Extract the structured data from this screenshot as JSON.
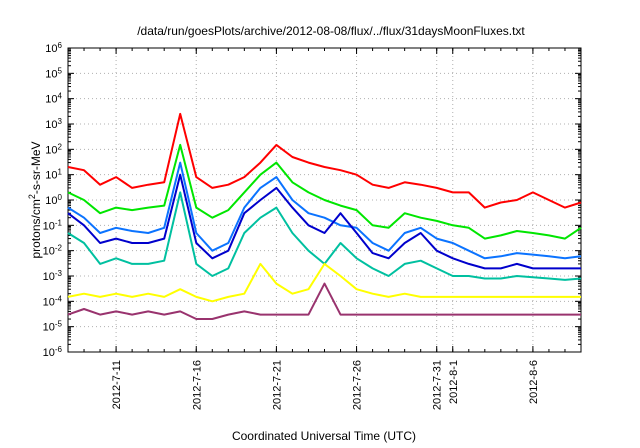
{
  "chart_data": {
    "type": "line",
    "title": "/data/run/goesPlots/archive/2012-08-08/flux/../flux/31daysMoonFluxes.txt",
    "xlabel": "Coordinated Universal Time (UTC)",
    "ylabel": "protons/cm2-s-sr-MeV",
    "ylabel_parts": {
      "base": "protons/cm",
      "sup": "2",
      "rest": "-s-sr-MeV"
    },
    "yscale": "log",
    "ylim": [
      1e-06,
      1000000.0
    ],
    "xlim": [
      "2012-07-08",
      "2012-08-09"
    ],
    "y_ticks": [
      {
        "value": 1e-06,
        "base": "10",
        "exp": "-6"
      },
      {
        "value": 1e-05,
        "base": "10",
        "exp": "-5"
      },
      {
        "value": 0.0001,
        "base": "10",
        "exp": "-4"
      },
      {
        "value": 0.001,
        "base": "10",
        "exp": "-3"
      },
      {
        "value": 0.01,
        "base": "10",
        "exp": "-2"
      },
      {
        "value": 0.1,
        "base": "10",
        "exp": "-1"
      },
      {
        "value": 1,
        "base": "10",
        "exp": "0"
      },
      {
        "value": 10,
        "base": "10",
        "exp": "1"
      },
      {
        "value": 100,
        "base": "10",
        "exp": "2"
      },
      {
        "value": 1000,
        "base": "10",
        "exp": "3"
      },
      {
        "value": 10000,
        "base": "10",
        "exp": "4"
      },
      {
        "value": 100000,
        "base": "10",
        "exp": "5"
      },
      {
        "value": 1000000,
        "base": "10",
        "exp": "6"
      }
    ],
    "x_ticks": [
      {
        "date": "2012-07-11",
        "label": "2012-7-11"
      },
      {
        "date": "2012-07-16",
        "label": "2012-7-16"
      },
      {
        "date": "2012-07-21",
        "label": "2012-7-21"
      },
      {
        "date": "2012-07-26",
        "label": "2012-7-26"
      },
      {
        "date": "2012-07-31",
        "label": "2012-7-31"
      },
      {
        "date": "2012-08-01",
        "label": "2012-8-1"
      },
      {
        "date": "2012-08-06",
        "label": "2012-8-6"
      }
    ],
    "grid": true,
    "legend": "none",
    "series": [
      {
        "color": "#ff0000",
        "x": [
          "2012-07-08",
          "2012-07-09",
          "2012-07-10",
          "2012-07-11",
          "2012-07-12",
          "2012-07-13",
          "2012-07-14",
          "2012-07-15",
          "2012-07-16",
          "2012-07-17",
          "2012-07-18",
          "2012-07-19",
          "2012-07-20",
          "2012-07-21",
          "2012-07-22",
          "2012-07-23",
          "2012-07-24",
          "2012-07-25",
          "2012-07-26",
          "2012-07-27",
          "2012-07-28",
          "2012-07-29",
          "2012-07-30",
          "2012-07-31",
          "2012-08-01",
          "2012-08-02",
          "2012-08-03",
          "2012-08-04",
          "2012-08-05",
          "2012-08-06",
          "2012-08-07",
          "2012-08-08",
          "2012-08-09"
        ],
        "values": [
          20,
          15,
          4,
          8,
          3,
          4,
          5,
          2500,
          8,
          3,
          4,
          8,
          30,
          150,
          50,
          30,
          20,
          15,
          10,
          4,
          3,
          5,
          4,
          3,
          2,
          2,
          0.5,
          0.8,
          1,
          2,
          1,
          0.5,
          0.8
        ]
      },
      {
        "color": "#00e600",
        "x": [
          "2012-07-08",
          "2012-07-09",
          "2012-07-10",
          "2012-07-11",
          "2012-07-12",
          "2012-07-13",
          "2012-07-14",
          "2012-07-15",
          "2012-07-16",
          "2012-07-17",
          "2012-07-18",
          "2012-07-19",
          "2012-07-20",
          "2012-07-21",
          "2012-07-22",
          "2012-07-23",
          "2012-07-24",
          "2012-07-25",
          "2012-07-26",
          "2012-07-27",
          "2012-07-28",
          "2012-07-29",
          "2012-07-30",
          "2012-07-31",
          "2012-08-01",
          "2012-08-02",
          "2012-08-03",
          "2012-08-04",
          "2012-08-05",
          "2012-08-06",
          "2012-08-07",
          "2012-08-08",
          "2012-08-09"
        ],
        "values": [
          2,
          1,
          0.3,
          0.5,
          0.4,
          0.5,
          0.6,
          150,
          0.5,
          0.2,
          0.4,
          2,
          10,
          30,
          5,
          2,
          1,
          0.6,
          0.4,
          0.1,
          0.08,
          0.3,
          0.2,
          0.15,
          0.1,
          0.08,
          0.03,
          0.04,
          0.06,
          0.05,
          0.04,
          0.03,
          0.08
        ]
      },
      {
        "color": "#0b73ff",
        "x": [
          "2012-07-08",
          "2012-07-09",
          "2012-07-10",
          "2012-07-11",
          "2012-07-12",
          "2012-07-13",
          "2012-07-14",
          "2012-07-15",
          "2012-07-16",
          "2012-07-17",
          "2012-07-18",
          "2012-07-19",
          "2012-07-20",
          "2012-07-21",
          "2012-07-22",
          "2012-07-23",
          "2012-07-24",
          "2012-07-25",
          "2012-07-26",
          "2012-07-27",
          "2012-07-28",
          "2012-07-29",
          "2012-07-30",
          "2012-07-31",
          "2012-08-01",
          "2012-08-02",
          "2012-08-03",
          "2012-08-04",
          "2012-08-05",
          "2012-08-06",
          "2012-08-07",
          "2012-08-08",
          "2012-08-09"
        ],
        "values": [
          0.5,
          0.2,
          0.05,
          0.08,
          0.06,
          0.05,
          0.08,
          30,
          0.05,
          0.01,
          0.02,
          0.5,
          3,
          8,
          1,
          0.3,
          0.2,
          0.1,
          0.08,
          0.02,
          0.01,
          0.05,
          0.08,
          0.03,
          0.02,
          0.01,
          0.005,
          0.006,
          0.008,
          0.007,
          0.006,
          0.005,
          0.006
        ]
      },
      {
        "color": "#0000cc",
        "x": [
          "2012-07-08",
          "2012-07-09",
          "2012-07-10",
          "2012-07-11",
          "2012-07-12",
          "2012-07-13",
          "2012-07-14",
          "2012-07-15",
          "2012-07-16",
          "2012-07-17",
          "2012-07-18",
          "2012-07-19",
          "2012-07-20",
          "2012-07-21",
          "2012-07-22",
          "2012-07-23",
          "2012-07-24",
          "2012-07-25",
          "2012-07-26",
          "2012-07-27",
          "2012-07-28",
          "2012-07-29",
          "2012-07-30",
          "2012-07-31",
          "2012-08-01",
          "2012-08-02",
          "2012-08-03",
          "2012-08-04",
          "2012-08-05",
          "2012-08-06",
          "2012-08-07",
          "2012-08-08",
          "2012-08-09"
        ],
        "values": [
          0.3,
          0.1,
          0.02,
          0.03,
          0.02,
          0.02,
          0.03,
          10,
          0.02,
          0.005,
          0.01,
          0.3,
          1,
          3,
          0.5,
          0.1,
          0.05,
          0.3,
          0.05,
          0.008,
          0.005,
          0.02,
          0.05,
          0.01,
          0.005,
          0.003,
          0.002,
          0.002,
          0.003,
          0.002,
          0.002,
          0.002,
          0.002
        ]
      },
      {
        "color": "#00c0a0",
        "x": [
          "2012-07-08",
          "2012-07-09",
          "2012-07-10",
          "2012-07-11",
          "2012-07-12",
          "2012-07-13",
          "2012-07-14",
          "2012-07-15",
          "2012-07-16",
          "2012-07-17",
          "2012-07-18",
          "2012-07-19",
          "2012-07-20",
          "2012-07-21",
          "2012-07-22",
          "2012-07-23",
          "2012-07-24",
          "2012-07-25",
          "2012-07-26",
          "2012-07-27",
          "2012-07-28",
          "2012-07-29",
          "2012-07-30",
          "2012-07-31",
          "2012-08-01",
          "2012-08-02",
          "2012-08-03",
          "2012-08-04",
          "2012-08-05",
          "2012-08-06",
          "2012-08-07",
          "2012-08-08",
          "2012-08-09"
        ],
        "values": [
          0.05,
          0.02,
          0.003,
          0.005,
          0.003,
          0.003,
          0.004,
          2,
          0.003,
          0.001,
          0.002,
          0.05,
          0.2,
          0.5,
          0.05,
          0.01,
          0.003,
          0.02,
          0.005,
          0.002,
          0.001,
          0.003,
          0.004,
          0.002,
          0.001,
          0.001,
          0.0008,
          0.0008,
          0.001,
          0.0009,
          0.0008,
          0.0007,
          0.0008
        ]
      },
      {
        "color": "#ffff00",
        "x": [
          "2012-07-08",
          "2012-07-09",
          "2012-07-10",
          "2012-07-11",
          "2012-07-12",
          "2012-07-13",
          "2012-07-14",
          "2012-07-15",
          "2012-07-16",
          "2012-07-17",
          "2012-07-18",
          "2012-07-19",
          "2012-07-20",
          "2012-07-21",
          "2012-07-22",
          "2012-07-23",
          "2012-07-24",
          "2012-07-25",
          "2012-07-26",
          "2012-07-27",
          "2012-07-28",
          "2012-07-29",
          "2012-07-30",
          "2012-07-31",
          "2012-08-01",
          "2012-08-02",
          "2012-08-03",
          "2012-08-04",
          "2012-08-05",
          "2012-08-06",
          "2012-08-07",
          "2012-08-08",
          "2012-08-09"
        ],
        "values": [
          0.00015,
          0.0002,
          0.00015,
          0.0002,
          0.00015,
          0.0002,
          0.00015,
          0.0003,
          0.00015,
          0.0001,
          0.00015,
          0.0002,
          0.003,
          0.0005,
          0.0002,
          0.0003,
          0.003,
          0.001,
          0.0003,
          0.0002,
          0.00015,
          0.0002,
          0.00015,
          0.00015,
          0.00015,
          0.00015,
          0.00015,
          0.00015,
          0.00015,
          0.00015,
          0.00015,
          0.00015,
          0.00015
        ]
      },
      {
        "color": "#99336e",
        "x": [
          "2012-07-08",
          "2012-07-09",
          "2012-07-10",
          "2012-07-11",
          "2012-07-12",
          "2012-07-13",
          "2012-07-14",
          "2012-07-15",
          "2012-07-16",
          "2012-07-17",
          "2012-07-18",
          "2012-07-19",
          "2012-07-20",
          "2012-07-21",
          "2012-07-22",
          "2012-07-23",
          "2012-07-24",
          "2012-07-25",
          "2012-07-26",
          "2012-07-27",
          "2012-07-28",
          "2012-07-29",
          "2012-07-30",
          "2012-07-31",
          "2012-08-01",
          "2012-08-02",
          "2012-08-03",
          "2012-08-04",
          "2012-08-05",
          "2012-08-06",
          "2012-08-07",
          "2012-08-08",
          "2012-08-09"
        ],
        "values": [
          3e-05,
          5e-05,
          3e-05,
          4e-05,
          3e-05,
          4e-05,
          3e-05,
          4e-05,
          2e-05,
          2e-05,
          3e-05,
          4e-05,
          3e-05,
          3e-05,
          3e-05,
          3e-05,
          0.0005,
          3e-05,
          3e-05,
          3e-05,
          3e-05,
          3e-05,
          3e-05,
          3e-05,
          3e-05,
          3e-05,
          3e-05,
          3e-05,
          3e-05,
          3e-05,
          3e-05,
          3e-05,
          3e-05
        ]
      }
    ]
  }
}
